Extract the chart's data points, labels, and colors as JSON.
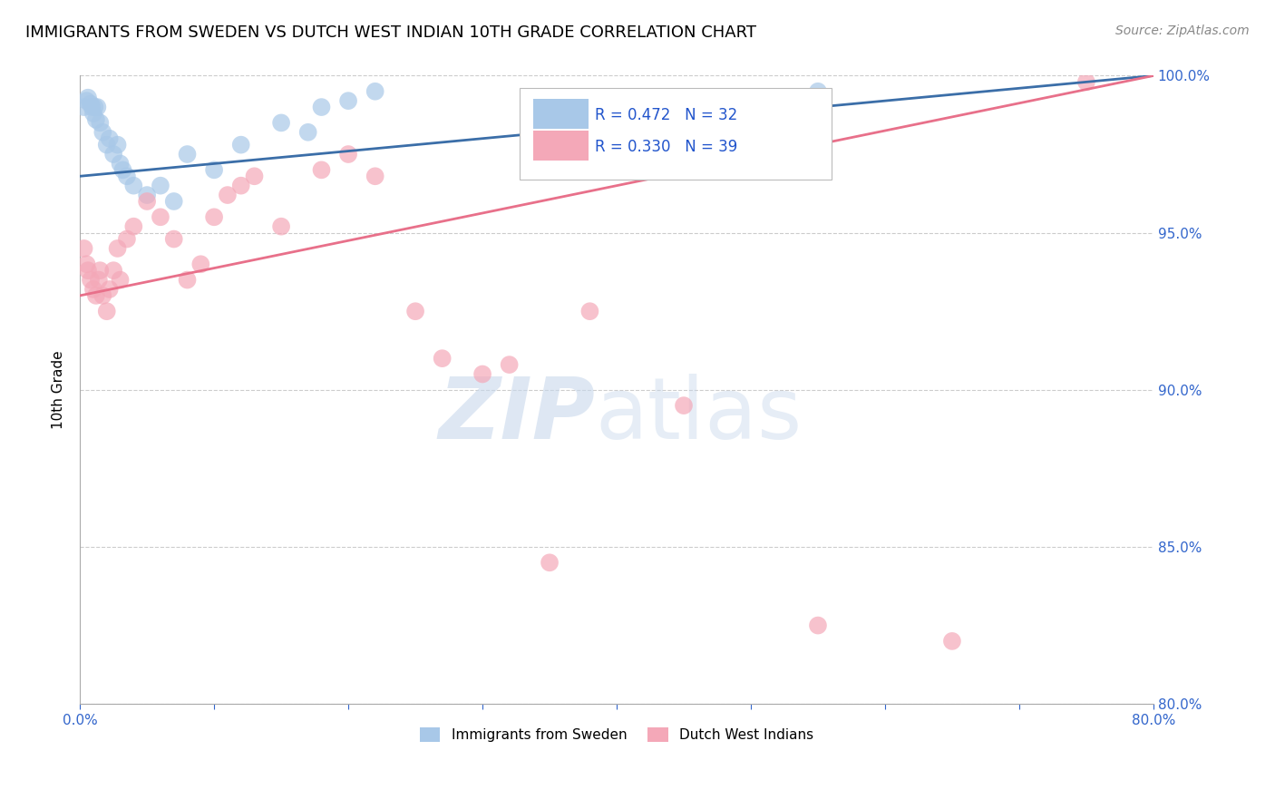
{
  "title": "IMMIGRANTS FROM SWEDEN VS DUTCH WEST INDIAN 10TH GRADE CORRELATION CHART",
  "source": "Source: ZipAtlas.com",
  "ylabel": "10th Grade",
  "xlim": [
    0.0,
    80.0
  ],
  "ylim": [
    80.0,
    100.0
  ],
  "legend_label1": "Immigrants from Sweden",
  "legend_label2": "Dutch West Indians",
  "R1": 0.472,
  "N1": 32,
  "R2": 0.33,
  "N2": 39,
  "blue_color": "#A8C8E8",
  "pink_color": "#F4A8B8",
  "blue_line_color": "#3B6EA8",
  "pink_line_color": "#E8708A",
  "title_fontsize": 13,
  "axis_label_fontsize": 11,
  "tick_fontsize": 11,
  "blue_scatter_x": [
    0.3,
    0.5,
    0.6,
    0.8,
    0.9,
    1.0,
    1.1,
    1.2,
    1.3,
    1.5,
    1.7,
    2.0,
    2.2,
    2.5,
    2.8,
    3.0,
    3.2,
    3.5,
    4.0,
    5.0,
    6.0,
    7.0,
    8.0,
    10.0,
    12.0,
    15.0,
    17.0,
    18.0,
    20.0,
    22.0,
    35.0,
    55.0
  ],
  "blue_scatter_y": [
    99.0,
    99.2,
    99.3,
    99.1,
    99.0,
    98.8,
    99.0,
    98.6,
    99.0,
    98.5,
    98.2,
    97.8,
    98.0,
    97.5,
    97.8,
    97.2,
    97.0,
    96.8,
    96.5,
    96.2,
    96.5,
    96.0,
    97.5,
    97.0,
    97.8,
    98.5,
    98.2,
    99.0,
    99.2,
    99.5,
    99.3,
    99.5
  ],
  "pink_scatter_x": [
    0.3,
    0.5,
    0.6,
    0.8,
    1.0,
    1.2,
    1.4,
    1.5,
    1.7,
    2.0,
    2.2,
    2.5,
    2.8,
    3.0,
    3.5,
    4.0,
    5.0,
    6.0,
    7.0,
    8.0,
    9.0,
    10.0,
    11.0,
    12.0,
    13.0,
    15.0,
    18.0,
    20.0,
    22.0,
    25.0,
    27.0,
    30.0,
    32.0,
    35.0,
    38.0,
    45.0,
    55.0,
    65.0,
    75.0
  ],
  "pink_scatter_y": [
    94.5,
    94.0,
    93.8,
    93.5,
    93.2,
    93.0,
    93.5,
    93.8,
    93.0,
    92.5,
    93.2,
    93.8,
    94.5,
    93.5,
    94.8,
    95.2,
    96.0,
    95.5,
    94.8,
    93.5,
    94.0,
    95.5,
    96.2,
    96.5,
    96.8,
    95.2,
    97.0,
    97.5,
    96.8,
    92.5,
    91.0,
    90.5,
    90.8,
    84.5,
    92.5,
    89.5,
    82.5,
    82.0,
    99.8
  ],
  "blue_trendline_x": [
    0.0,
    80.0
  ],
  "blue_trendline_y": [
    96.8,
    100.0
  ],
  "pink_trendline_x": [
    0.0,
    80.0
  ],
  "pink_trendline_y": [
    93.0,
    100.0
  ]
}
